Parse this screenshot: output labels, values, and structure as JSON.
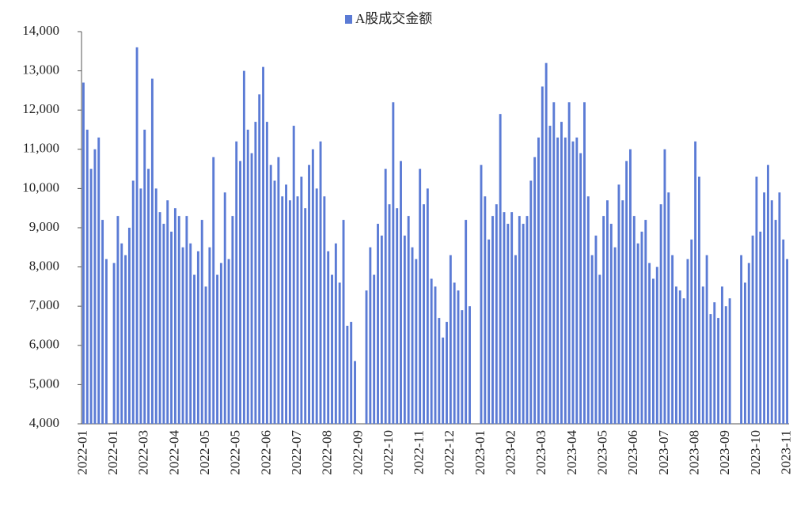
{
  "chart_data": {
    "type": "bar",
    "legend": "A股成交金额",
    "color": "#5b7bd5",
    "ylim": [
      4000,
      14000
    ],
    "yticks": [
      {
        "value": 4000,
        "label": "4,000"
      },
      {
        "value": 5000,
        "label": "5,000"
      },
      {
        "value": 6000,
        "label": "6,000"
      },
      {
        "value": 7000,
        "label": "7,000"
      },
      {
        "value": 8000,
        "label": "8,000"
      },
      {
        "value": 9000,
        "label": "9,000"
      },
      {
        "value": 10000,
        "label": "10,000"
      },
      {
        "value": 11000,
        "label": "11,000"
      },
      {
        "value": 12000,
        "label": "12,000"
      },
      {
        "value": 13000,
        "label": "13,000"
      },
      {
        "value": 14000,
        "label": "14,000"
      }
    ],
    "categories": [
      "2022-01",
      null,
      null,
      null,
      null,
      null,
      null,
      null,
      "2022-01",
      null,
      null,
      null,
      null,
      null,
      null,
      null,
      "2022-03",
      null,
      null,
      null,
      null,
      null,
      null,
      null,
      "2022-04",
      null,
      null,
      null,
      null,
      null,
      null,
      null,
      "2022-05",
      null,
      null,
      null,
      null,
      null,
      null,
      null,
      "2022-05",
      null,
      null,
      null,
      null,
      null,
      null,
      null,
      "2022-06",
      null,
      null,
      null,
      null,
      null,
      null,
      null,
      "2022-07",
      null,
      null,
      null,
      null,
      null,
      null,
      null,
      "2022-08",
      null,
      null,
      null,
      null,
      null,
      null,
      null,
      "2022-09",
      null,
      null,
      null,
      null,
      null,
      null,
      null,
      "2022-10",
      null,
      null,
      null,
      null,
      null,
      null,
      null,
      "2022-11",
      null,
      null,
      null,
      null,
      null,
      null,
      null,
      "2022-12",
      null,
      null,
      null,
      null,
      null,
      null,
      null,
      "2023-01",
      null,
      null,
      null,
      null,
      null,
      null,
      null,
      "2023-02",
      null,
      null,
      null,
      null,
      null,
      null,
      null,
      "2023-03",
      null,
      null,
      null,
      null,
      null,
      null,
      null,
      "2023-04",
      null,
      null,
      null,
      null,
      null,
      null,
      null,
      "2023-05",
      null,
      null,
      null,
      null,
      null,
      null,
      null,
      "2023-06",
      null,
      null,
      null,
      null,
      null,
      null,
      null,
      "2023-07",
      null,
      null,
      null,
      null,
      null,
      null,
      null,
      "2023-08",
      null,
      null,
      null,
      null,
      null,
      null,
      null,
      "2023-09",
      null,
      null,
      null,
      null,
      null,
      null,
      null,
      "2023-10",
      null,
      null,
      null,
      null,
      null,
      null,
      null,
      "2023-11"
    ],
    "values": [
      12700,
      11500,
      10500,
      11000,
      11300,
      9200,
      8200,
      null,
      8100,
      9300,
      8600,
      8300,
      9000,
      10200,
      13600,
      10000,
      11500,
      10500,
      12800,
      10000,
      9400,
      9100,
      9700,
      8900,
      9500,
      9300,
      8500,
      9300,
      8600,
      7800,
      8400,
      9200,
      7500,
      8500,
      10800,
      7800,
      8100,
      9900,
      8200,
      9300,
      11200,
      10700,
      13000,
      11500,
      10900,
      11700,
      12400,
      13100,
      11700,
      10600,
      10200,
      10800,
      9800,
      10100,
      9700,
      11600,
      9800,
      10300,
      9500,
      10600,
      11000,
      10000,
      11200,
      9800,
      8400,
      7800,
      8600,
      7600,
      9200,
      6500,
      6600,
      5600,
      null,
      null,
      7400,
      8500,
      7800,
      9100,
      8800,
      10500,
      9600,
      12200,
      9500,
      10700,
      8800,
      9300,
      8500,
      8200,
      10500,
      9600,
      10000,
      7700,
      7500,
      6700,
      6200,
      6600,
      8300,
      7600,
      7400,
      6900,
      9200,
      7000,
      null,
      null,
      10600,
      9800,
      8700,
      9300,
      9600,
      11900,
      9400,
      9100,
      9400,
      8300,
      9300,
      9100,
      9300,
      10200,
      10800,
      11300,
      12600,
      13200,
      11600,
      12200,
      11300,
      11700,
      11300,
      12200,
      11200,
      11300,
      10900,
      12200,
      9800,
      8300,
      8800,
      7800,
      9300,
      9700,
      9100,
      8500,
      10100,
      9700,
      10700,
      11000,
      9300,
      8600,
      8900,
      9200,
      8100,
      7700,
      8000,
      9600,
      11000,
      9900,
      8300,
      7500,
      7400,
      7200,
      8200,
      8700,
      11200,
      10300,
      7500,
      8300,
      6800,
      7100,
      6700,
      7500,
      7000,
      7200,
      null,
      null,
      8300,
      7600,
      8100,
      8800,
      10300,
      8900,
      9900,
      10600,
      9700,
      9200,
      9900,
      8700,
      8200
    ]
  }
}
